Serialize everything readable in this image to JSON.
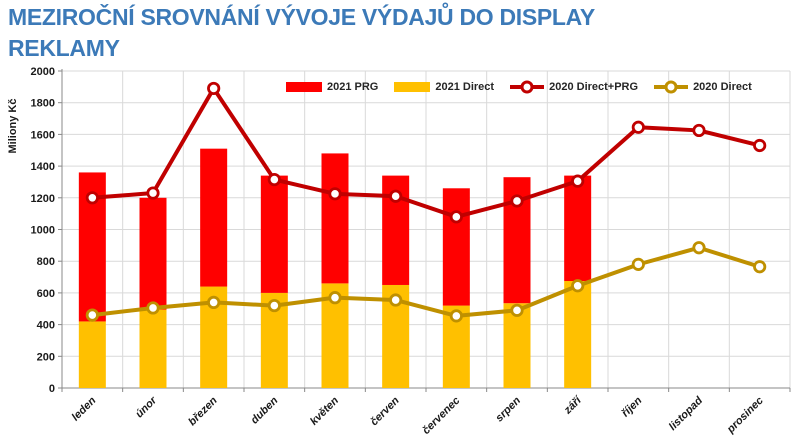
{
  "header": {
    "title_line1": "MEZIROČNÍ SROVNÁNÍ VÝVOJE VÝDAJŮ DO DISPLAY",
    "title_line2": "REKLAMY"
  },
  "colors": {
    "title_blue": "#3C7AB8",
    "bar_2021_prg": "#FF0000",
    "bar_2021_direct": "#FFC000",
    "line_2020_direct_prg": "#C00000",
    "line_2020_direct": "#BF9000",
    "gridline": "#D9D9D9",
    "axis": "#898989",
    "label_text": "#1A1A1A"
  },
  "chart_data": {
    "type": "bar",
    "subtype": "stacked-bars-with-lines",
    "title": "MEZIROČNÍ SROVNÁNÍ VÝVOJE VÝDAJŮ DO DISPLAY REKLAMY",
    "xlabel": "",
    "ylabel": "Miliony Kč",
    "ylim": [
      0,
      2000
    ],
    "yticks": [
      0,
      200,
      400,
      600,
      800,
      1000,
      1200,
      1400,
      1600,
      1800,
      2000
    ],
    "grid": true,
    "legend_position": "top-center",
    "categories": [
      "leden",
      "únor",
      "březen",
      "duben",
      "květen",
      "červen",
      "červenec",
      "srpen",
      "září",
      "říjen",
      "listopad",
      "prosinec"
    ],
    "series": [
      {
        "name": "2021 PRG",
        "kind": "bar",
        "stack": "2021",
        "stack_order": "top",
        "color": "#FF0000",
        "values": [
          940,
          705,
          870,
          740,
          820,
          690,
          740,
          795,
          665,
          null,
          null,
          null
        ]
      },
      {
        "name": "2021 Direct",
        "kind": "bar",
        "stack": "2021",
        "stack_order": "bottom",
        "color": "#FFC000",
        "values": [
          420,
          495,
          640,
          600,
          660,
          650,
          520,
          535,
          675,
          null,
          null,
          null
        ]
      },
      {
        "name": "2020 Direct+PRG",
        "kind": "line",
        "marker": "circle",
        "color": "#C00000",
        "values": [
          1200,
          1230,
          1890,
          1315,
          1225,
          1210,
          1080,
          1180,
          1305,
          1645,
          1625,
          1530
        ]
      },
      {
        "name": "2020 Direct",
        "kind": "line",
        "marker": "circle",
        "color": "#BF9000",
        "values": [
          460,
          505,
          540,
          520,
          570,
          555,
          455,
          490,
          645,
          780,
          885,
          765
        ]
      }
    ],
    "stacked_totals_2021": [
      1360,
      1200,
      1510,
      1340,
      1480,
      1340,
      1260,
      1330,
      1340,
      null,
      null,
      null
    ]
  }
}
